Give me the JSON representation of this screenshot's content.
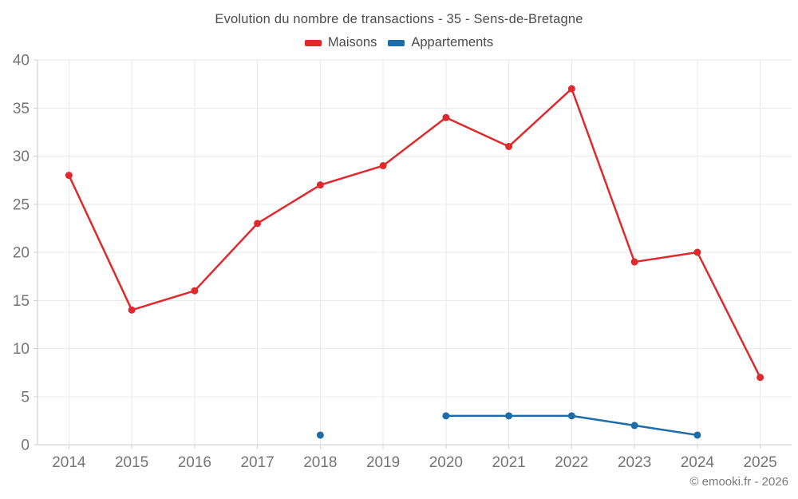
{
  "page": {
    "footer": "© emooki.fr - 2026"
  },
  "chart_data": {
    "type": "line",
    "title": "Evolution du nombre de transactions - 35 - Sens-de-Bretagne",
    "categories": [
      "2014",
      "2015",
      "2016",
      "2017",
      "2018",
      "2019",
      "2020",
      "2021",
      "2022",
      "2023",
      "2024",
      "2025"
    ],
    "series": [
      {
        "name": "Maisons",
        "color": "#df2a2d",
        "values": [
          28,
          14,
          16,
          23,
          27,
          29,
          34,
          31,
          37,
          19,
          20,
          7
        ]
      },
      {
        "name": "Appartements",
        "color": "#1b6ca8",
        "values": [
          null,
          null,
          null,
          null,
          1,
          null,
          3,
          3,
          3,
          2,
          1,
          null
        ]
      }
    ],
    "xlabel": "",
    "ylabel": "",
    "ylim": [
      0,
      40
    ],
    "ytick_step": 5,
    "grid": "on",
    "legend_position": "top",
    "annotation": "© emooki.fr - 2026"
  }
}
